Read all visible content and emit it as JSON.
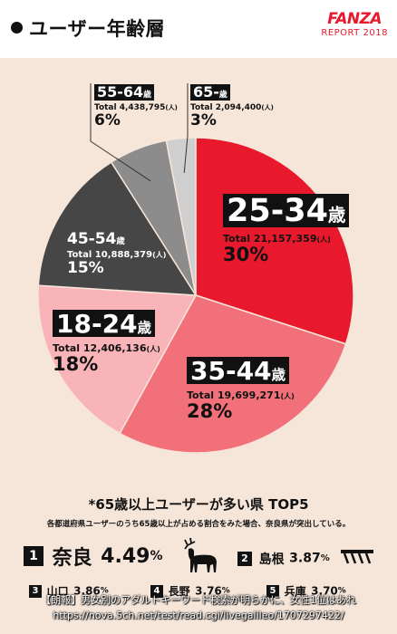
{
  "header": {
    "title": "ユーザー年齢層",
    "brand_logo": "FANZA",
    "brand_sub": "REPORT 2018"
  },
  "chart_data": {
    "type": "pie",
    "title": "ユーザー年齢層",
    "unit": "(人)",
    "slices": [
      {
        "label": "25-34",
        "suffix": "歳",
        "total": "Total 21,157,359",
        "unit": "(人)",
        "percent_label": "30%",
        "value": 30,
        "color": "#e8192c"
      },
      {
        "label": "35-44",
        "suffix": "歳",
        "total": "Total 19,699,271",
        "unit": "(人)",
        "percent_label": "28%",
        "value": 28,
        "color": "#f2707a"
      },
      {
        "label": "18-24",
        "suffix": "歳",
        "total": "Total 12,406,136",
        "unit": "(人)",
        "percent_label": "18%",
        "value": 18,
        "color": "#f8b4b8"
      },
      {
        "label": "45-54",
        "suffix": "歳",
        "total": "Total 10,888,379",
        "unit": "(人)",
        "percent_label": "15%",
        "value": 15,
        "color": "#464646"
      },
      {
        "label": "55-64",
        "suffix": "歳",
        "total": "Total 4,438,795",
        "unit": "(人)",
        "percent_label": "6%",
        "value": 6,
        "color": "#8c8c8c"
      },
      {
        "label": "65-",
        "suffix": "歳",
        "total": "Total 2,094,400",
        "unit": "(人)",
        "percent_label": "3%",
        "value": 3,
        "color": "#cfcfcf"
      }
    ]
  },
  "top5": {
    "title": "*65歳以上ユーザーが多い県 TOP5",
    "subtitle": "各都道府県ユーザーのうち65歳以上が占める割合をみた場合、奈良県が突出している。",
    "items": [
      {
        "rank": "1",
        "name": "奈良",
        "value": "4.49",
        "pct": "%"
      },
      {
        "rank": "2",
        "name": "島根",
        "value": "3.87",
        "pct": "%"
      },
      {
        "rank": "3",
        "name": "山口",
        "value": "3.86",
        "pct": "%"
      },
      {
        "rank": "4",
        "name": "長野",
        "value": "3.76",
        "pct": "%"
      },
      {
        "rank": "5",
        "name": "兵庫",
        "value": "3.70",
        "pct": "%"
      }
    ]
  },
  "caption": {
    "line1": "【朗報】男女別のアダルトキーワード検索が明らかに、女性1位はあれ",
    "line2": "https://nova.5ch.net/test/read.cgi/livegalileo/1707297422/"
  }
}
